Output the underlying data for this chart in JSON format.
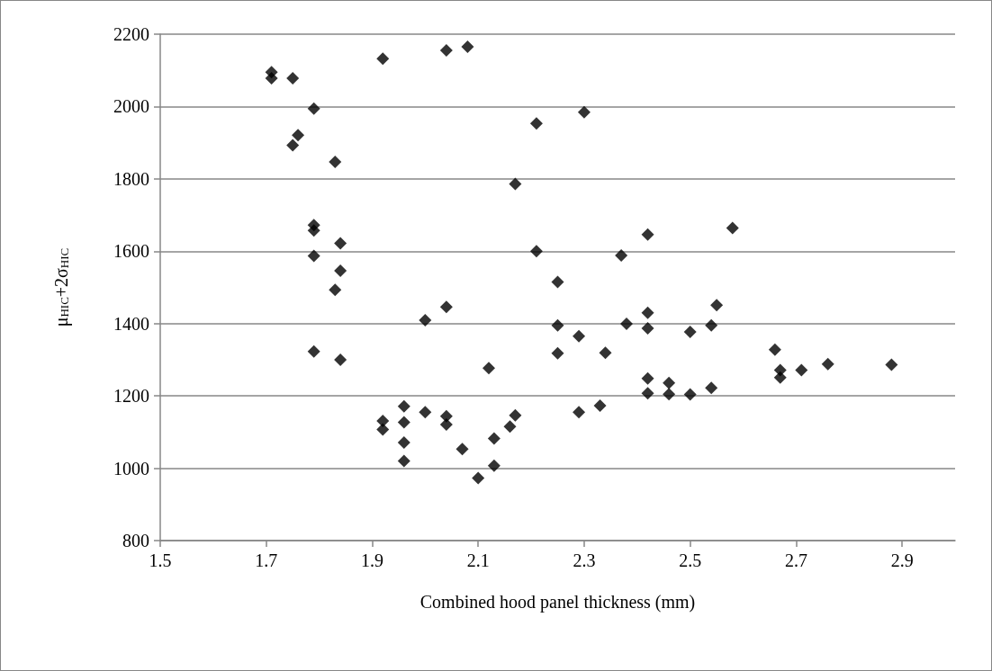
{
  "chart_data": {
    "type": "scatter",
    "xlabel": "Combined hood panel thickness (mm)",
    "ylabel": "μ$_{HIC}$+2σ$_{HIC}$",
    "x": [
      1.71,
      1.71,
      1.75,
      1.92,
      2.04,
      2.08,
      1.79,
      1.76,
      1.75,
      1.83,
      2.17,
      1.79,
      1.79,
      1.84,
      1.79,
      1.84,
      1.83,
      2.04,
      2.0,
      1.79,
      1.84,
      2.12,
      1.96,
      2.0,
      1.92,
      1.92,
      1.96,
      2.04,
      2.04,
      1.96,
      2.07,
      1.96,
      2.1,
      2.13,
      2.13,
      2.17,
      2.16,
      2.21,
      2.3,
      2.58,
      2.42,
      2.21,
      2.37,
      2.25,
      2.55,
      2.42,
      2.25,
      2.29,
      2.38,
      2.42,
      2.5,
      2.54,
      2.25,
      2.34,
      2.29,
      2.33,
      2.42,
      2.42,
      2.46,
      2.46,
      2.5,
      2.54,
      2.66,
      2.67,
      2.67,
      2.71,
      2.76,
      2.88
    ],
    "values": [
      2095,
      2078,
      2078,
      2132,
      2155,
      2165,
      1994,
      1921,
      1893,
      1847,
      1786,
      1672,
      1657,
      1622,
      1587,
      1546,
      1493,
      1446,
      1409,
      1323,
      1300,
      1277,
      1171,
      1155,
      1131,
      1107,
      1127,
      1144,
      1121,
      1071,
      1053,
      1020,
      973,
      1082,
      1007,
      1146,
      1115,
      1953,
      1984,
      1664,
      1646,
      1600,
      1588,
      1515,
      1451,
      1430,
      1395,
      1365,
      1399,
      1387,
      1377,
      1395,
      1318,
      1319,
      1155,
      1173,
      1248,
      1207,
      1236,
      1205,
      1204,
      1222,
      1328,
      1271,
      1251,
      1271,
      1288,
      1286
    ],
    "color": "#000000",
    "marker": "diamond",
    "xlim": [
      1.5,
      3.0
    ],
    "xticks": [
      1.5,
      1.7,
      1.9,
      2.1,
      2.3,
      2.5,
      2.7,
      2.9
    ],
    "ylim": [
      800,
      2200
    ],
    "yticks": [
      800,
      1000,
      1200,
      1400,
      1600,
      1800,
      2000,
      2200
    ],
    "grid": "y"
  }
}
